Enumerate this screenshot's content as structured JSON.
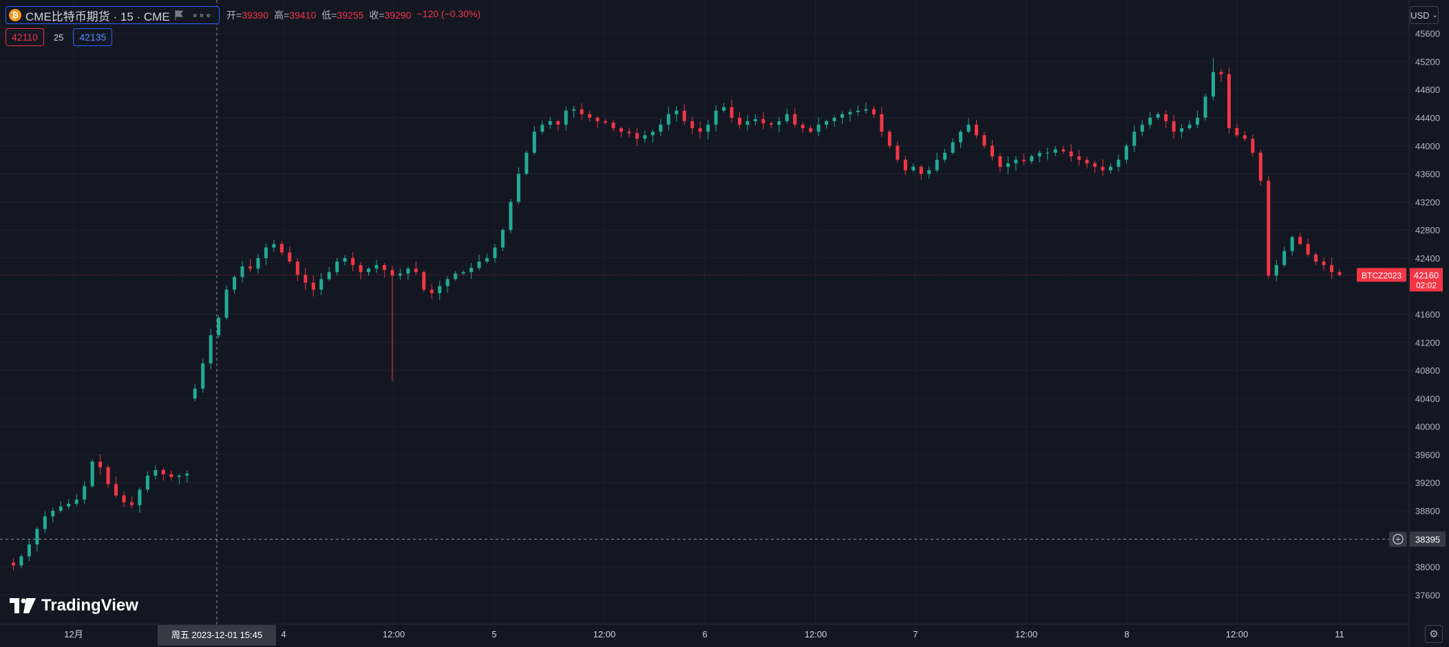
{
  "symbol": {
    "title": "CME比特币期货 · 15 · CME",
    "icon": "bitcoin-icon",
    "coin_glyph": "₿",
    "more": "∘∘∘"
  },
  "ohlc": {
    "open_label": "开=",
    "open": "39390",
    "high_label": "高=",
    "high": "39410",
    "low_label": "低=",
    "low": "39255",
    "close_label": "收=",
    "close": "39290",
    "change": "−120 (−0.30%)"
  },
  "quote": {
    "bid": "42110",
    "spread": "25",
    "ask": "42135"
  },
  "currency": "USD",
  "currency_arrow": "⌄",
  "price_axis": {
    "ticks": [
      "45600",
      "45200",
      "44800",
      "44400",
      "44000",
      "43600",
      "43200",
      "42800",
      "42400",
      "41600",
      "41200",
      "40800",
      "40400",
      "40000",
      "39600",
      "39200",
      "38800",
      "38000",
      "37600"
    ]
  },
  "time_axis": {
    "labels": [
      "12月",
      "4",
      "12:00",
      "5",
      "12:00",
      "6",
      "12:00",
      "7",
      "12:00",
      "8",
      "12:00",
      "11"
    ],
    "crosshair_label": "周五  2023-12-01    15:45"
  },
  "last_price": {
    "symbol_tag": "BTCZ2023",
    "price": "42160",
    "countdown": "02:02"
  },
  "crosshair_price": "38395",
  "crosshair_plus": "+",
  "branding": "TradingView",
  "settings_glyph": "⚙",
  "colors": {
    "up": "#22ab94",
    "down": "#f23645",
    "background": "#131722",
    "grid": "#1e2230",
    "accent": "#2962ff",
    "text": "#d1d4dc"
  },
  "chart_data": {
    "type": "line",
    "title": "",
    "xlabel": "",
    "ylabel": "",
    "ylim": [
      37300,
      45900
    ],
    "y_ticks": [
      45600,
      45200,
      44800,
      44400,
      44000,
      43600,
      43200,
      42800,
      42400,
      41600,
      41200,
      40800,
      40400,
      40000,
      39600,
      39200,
      38800,
      38000,
      37600
    ],
    "series": [
      {
        "values": [
          38060,
          38020,
          38150,
          38320,
          38540,
          38720,
          38800,
          38860,
          38900,
          38960,
          39150,
          39500,
          39420,
          39180,
          39020,
          38920,
          38880,
          39100,
          39300,
          39380,
          39320,
          39280,
          39300,
          39330,
          40540,
          40900,
          41300,
          41550,
          41950,
          42130,
          42280,
          42250,
          42400,
          42550,
          42600,
          42480,
          42350,
          42160,
          42050,
          41950,
          42100,
          42200,
          42350,
          42400,
          42300,
          42200,
          42250,
          42300,
          42230,
          42150,
          42180,
          42250,
          42200,
          41950,
          41900,
          42000,
          42100,
          42180,
          42200,
          42260,
          42350,
          42400,
          42550,
          42800,
          43200,
          43600,
          43900,
          44200,
          44300,
          44350,
          44300,
          44500,
          44520,
          44450,
          44400,
          44350,
          44330,
          44250,
          44200,
          44180,
          44100,
          44150,
          44200,
          44300,
          44450,
          44500,
          44350,
          44250,
          44200,
          44300,
          44500,
          44550,
          44400,
          44300,
          44350,
          44380,
          44320,
          44300,
          44350,
          44450,
          44300,
          44250,
          44200,
          44300,
          44350,
          44400,
          44450,
          44480,
          44500,
          44520,
          44450,
          44200,
          44000,
          43800,
          43650,
          43700,
          43600,
          43650,
          43800,
          43900,
          44050,
          44200,
          44300,
          44150,
          44000,
          43850,
          43700,
          43750,
          43800,
          43780,
          43850,
          43900,
          43900,
          43950,
          43920,
          43850,
          43800,
          43750,
          43700,
          43650,
          43700,
          43800,
          44000,
          44200,
          44300,
          44400,
          44450,
          44350,
          44200,
          44250,
          44300,
          44400,
          44700,
          45050,
          45020,
          44250,
          44150,
          44100,
          43900,
          43500,
          42150,
          42300,
          42500,
          42700,
          42600,
          42450,
          42350,
          42300,
          42200,
          42160
        ]
      }
    ],
    "events": {
      "gap_open_after_index": 23,
      "low_spike": 40650,
      "high_peak": 45250
    }
  }
}
